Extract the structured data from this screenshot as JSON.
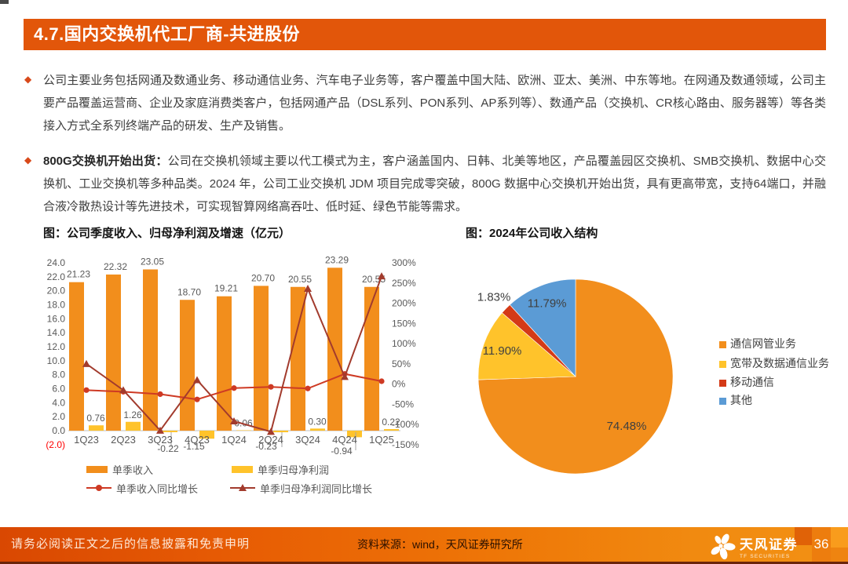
{
  "header": {
    "title": "4.7.国内交换机代工厂商-共进股份",
    "bg_color": "#E2560A"
  },
  "bullets": [
    {
      "bold": "",
      "text": "公司主要业务包括网通及数通业务、移动通信业务、汽车电子业务等，客户覆盖中国大陆、欧洲、亚太、美洲、中东等地。在网通及数通领域，公司主要产品覆盖运营商、企业及家庭消费类客户，包括网通产品（DSL系列、PON系列、AP系列等）、数通产品（交换机、CR核心路由、服务器等）等各类接入方式全系列终端产品的研发、生产及销售。"
    },
    {
      "bold": "800G交换机开始出货：",
      "text": "公司在交换机领域主要以代工模式为主，客户涵盖国内、日韩、北美等地区，产品覆盖园区交换机、SMB交换机、数据中心交换机、工业交换机等多种品类。2024 年，公司工业交换机 JDM 项目完成零突破，800G 数据中心交换机开始出货，具有更高带宽，支持64端口，并融合液冷散热设计等先进技术，可实现智算网络高吞吐、低时延、绿色节能等需求。"
    }
  ],
  "chart_data": [
    {
      "type": "bar+line",
      "title": "图：公司季度收入、归母净利润及增速（亿元）",
      "categories": [
        "1Q23",
        "2Q23",
        "3Q23",
        "4Q23",
        "1Q24",
        "2Q24",
        "3Q24",
        "4Q24",
        "1Q25"
      ],
      "bar_series": [
        {
          "name": "单季收入",
          "color": "#F28E1C",
          "axis": "left",
          "values": [
            21.23,
            22.32,
            23.05,
            18.7,
            19.21,
            20.7,
            20.55,
            23.29,
            20.55
          ],
          "labels": [
            "21.23",
            "22.32",
            "23.05",
            "18.70",
            "19.21",
            "20.70",
            "20.55",
            "23.29",
            "20.55"
          ]
        },
        {
          "name": "单季归母净利润",
          "color": "#FFC32B",
          "axis": "left",
          "values": [
            0.76,
            1.26,
            -0.22,
            -1.15,
            0.06,
            -0.23,
            0.3,
            -0.94,
            0.22
          ],
          "labels": [
            "0.76",
            "1.26",
            "-0.22",
            "-1.15",
            "0.06",
            "-0.23",
            "0.30",
            "-0.94",
            "0.22"
          ]
        }
      ],
      "line_series": [
        {
          "name": "单季收入同比增长",
          "color": "#CE3A24",
          "marker": "circle",
          "axis": "right",
          "values_pct": [
            -15,
            -19,
            -25,
            -38,
            -10,
            -7,
            -11,
            25,
            7
          ]
        },
        {
          "name": "单季归母净利润同比增长",
          "color": "#A23B2D",
          "marker": "triangle",
          "axis": "right",
          "values_pct": [
            50,
            -15,
            -115,
            10,
            -92,
            -118,
            236,
            18,
            267
          ]
        }
      ],
      "left_axis": {
        "min": -2,
        "max": 24,
        "step": 2,
        "labels": [
          "24.0",
          "22.0",
          "20.0",
          "18.0",
          "16.0",
          "14.0",
          "12.0",
          "10.0",
          "8.0",
          "6.0",
          "4.0",
          "2.0",
          "0.0",
          "(2.0)"
        ],
        "negative_label_color": "#FF0000"
      },
      "right_axis": {
        "min": -150,
        "max": 300,
        "step": 50,
        "labels": [
          "300%",
          "250%",
          "200%",
          "150%",
          "100%",
          "50%",
          "0%",
          "-50%",
          "-100%",
          "-150%"
        ]
      },
      "grid": "off",
      "legend_position": "bottom"
    },
    {
      "type": "pie",
      "title": "图：2024年公司收入结构",
      "slices": [
        {
          "label": "通信网管业务",
          "value": 74.48,
          "display": "74.48%",
          "color": "#F28E1C"
        },
        {
          "label": "宽带及数据通信业务",
          "value": 11.9,
          "display": "11.90%",
          "color": "#FFC32B"
        },
        {
          "label": "移动通信",
          "value": 1.83,
          "display": "1.83%",
          "color": "#D43A17"
        },
        {
          "label": "其他",
          "value": 11.79,
          "display": "11.79%",
          "color": "#5B9BD5"
        }
      ],
      "legend_position": "right",
      "start_angle": "top",
      "direction": "clockwise"
    }
  ],
  "footer": {
    "disclaimer": "请务必阅读正文之后的信息披露和免责申明",
    "source": "资料来源：wind，天风证券研究所",
    "brand": "天风证券",
    "brand_sub": "TF SECURITIES",
    "page_number": "36"
  }
}
